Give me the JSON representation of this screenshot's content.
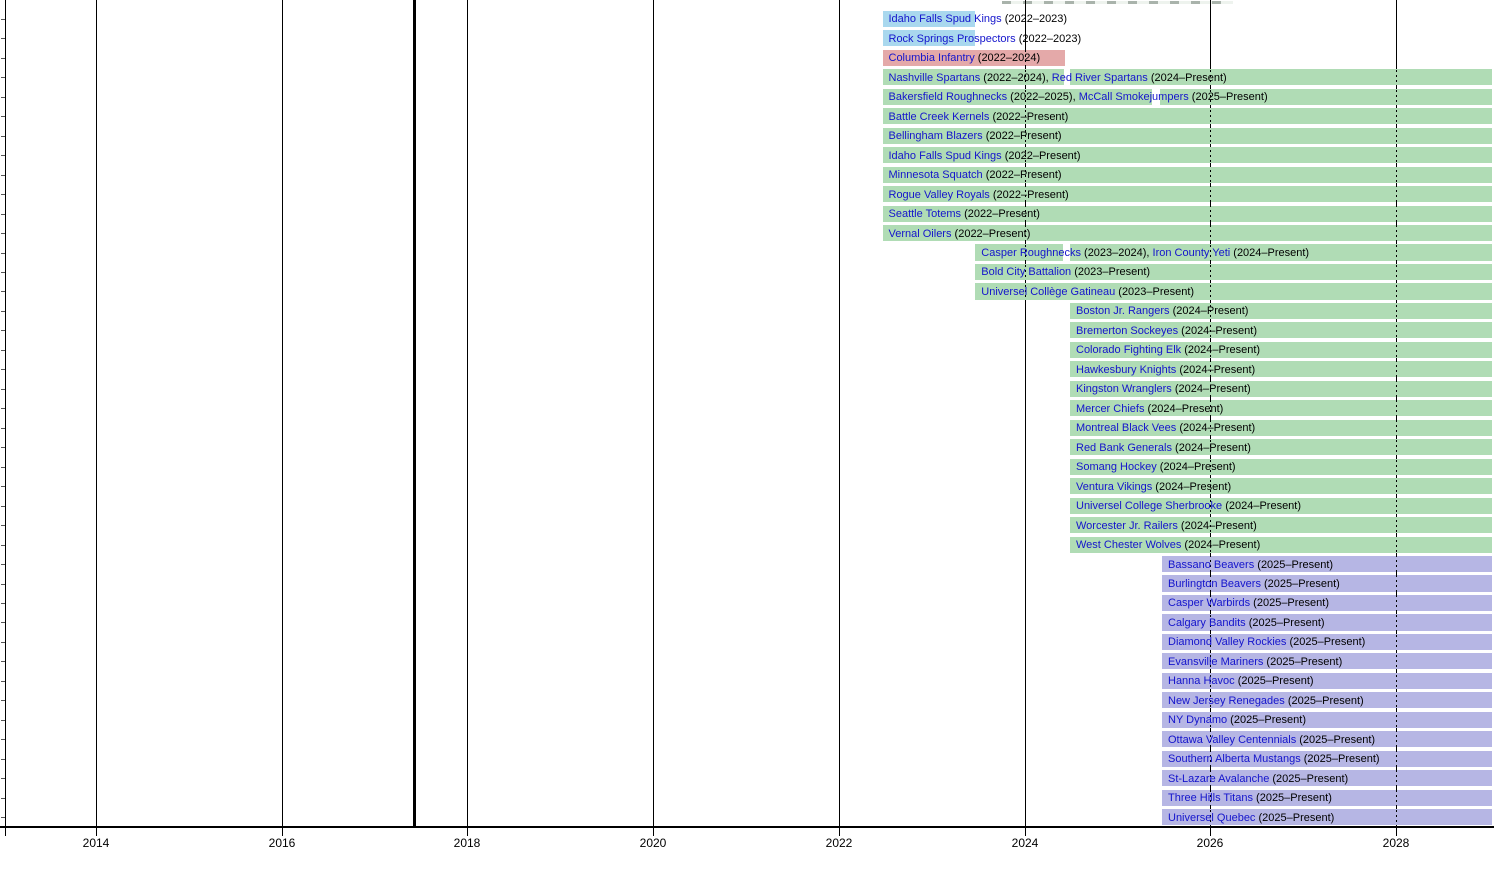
{
  "chart_data": {
    "type": "timeline",
    "title": "",
    "x_axis": {
      "tick_years": [
        2014,
        2016,
        2018,
        2020,
        2022,
        2024,
        2026,
        2028
      ],
      "range": [
        2013.0,
        2029.05
      ]
    },
    "era_marker_year": 2017.42,
    "present_end_year": 2029.03,
    "colors": {
      "blue": "#a9d8ee",
      "pink": "#e4a9a9",
      "green": "#b0dcb5",
      "purple": "#b6b6e4",
      "link_text": "#1414cc",
      "plain_text": "#000000"
    },
    "rows": [
      {
        "color": "blue",
        "segments": [
          {
            "name": "Idaho Falls Spud Kings",
            "years": "2022–2023",
            "start": 2022.47,
            "end": 2023.47
          }
        ]
      },
      {
        "color": "blue",
        "segments": [
          {
            "name": "Rock Springs Prospectors",
            "years": "2022–2023",
            "start": 2022.47,
            "end": 2023.47
          }
        ]
      },
      {
        "color": "pink",
        "segments": [
          {
            "name": "Columbia Infantry",
            "years": "2022–2024",
            "start": 2022.47,
            "end": 2024.44
          }
        ]
      },
      {
        "color": "green",
        "segments": [
          {
            "name": "Nashville Spartans",
            "years": "2022–2024",
            "start": 2022.47,
            "end": 2024.42
          },
          {
            "name": "Red River Spartans",
            "years": "2024–Present",
            "start": 2024.49,
            "end": 2029.03
          }
        ]
      },
      {
        "color": "green",
        "segments": [
          {
            "name": "Bakersfield Roughnecks",
            "years": "2022–2025",
            "start": 2022.47,
            "end": 2025.37
          },
          {
            "name": "McCall Smokejumpers",
            "years": "2025–Present",
            "start": 2025.46,
            "end": 2029.03
          }
        ]
      },
      {
        "color": "green",
        "segments": [
          {
            "name": "Battle Creek Kernels",
            "years": "2022–Present",
            "start": 2022.47,
            "end": 2029.03
          }
        ]
      },
      {
        "color": "green",
        "segments": [
          {
            "name": "Bellingham Blazers",
            "years": "2022–Present",
            "start": 2022.47,
            "end": 2029.03
          }
        ]
      },
      {
        "color": "green",
        "segments": [
          {
            "name": "Idaho Falls Spud Kings",
            "years": "2022–Present",
            "start": 2022.47,
            "end": 2029.03
          }
        ]
      },
      {
        "color": "green",
        "segments": [
          {
            "name": "Minnesota Squatch",
            "years": "2022–Present",
            "start": 2022.47,
            "end": 2029.03
          }
        ]
      },
      {
        "color": "green",
        "segments": [
          {
            "name": "Rogue Valley Royals",
            "years": "2022–Present",
            "start": 2022.47,
            "end": 2029.03
          }
        ]
      },
      {
        "color": "green",
        "segments": [
          {
            "name": "Seattle Totems",
            "years": "2022–Present",
            "start": 2022.47,
            "end": 2029.03
          }
        ]
      },
      {
        "color": "green",
        "segments": [
          {
            "name": "Vernal Oilers",
            "years": "2022–Present",
            "start": 2022.47,
            "end": 2029.03
          }
        ]
      },
      {
        "color": "green",
        "segments": [
          {
            "name": "Casper Roughnecks",
            "years": "2023–2024",
            "start": 2023.47,
            "end": 2024.42
          },
          {
            "name": "Iron County Yeti",
            "years": "2024–Present",
            "start": 2024.49,
            "end": 2029.03
          }
        ]
      },
      {
        "color": "green",
        "segments": [
          {
            "name": "Bold City Battalion",
            "years": "2023–Present",
            "start": 2023.47,
            "end": 2029.03
          }
        ]
      },
      {
        "color": "green",
        "segments": [
          {
            "name": "Universel Collège Gatineau",
            "years": "2023–Present",
            "start": 2023.47,
            "end": 2029.03
          }
        ]
      },
      {
        "color": "green",
        "segments": [
          {
            "name": "Boston Jr. Rangers",
            "years": "2024–Present",
            "start": 2024.49,
            "end": 2029.03
          }
        ]
      },
      {
        "color": "green",
        "segments": [
          {
            "name": "Bremerton Sockeyes",
            "years": "2024–Present",
            "start": 2024.49,
            "end": 2029.03
          }
        ]
      },
      {
        "color": "green",
        "segments": [
          {
            "name": "Colorado Fighting Elk",
            "years": "2024–Present",
            "start": 2024.49,
            "end": 2029.03
          }
        ]
      },
      {
        "color": "green",
        "segments": [
          {
            "name": "Hawkesbury Knights",
            "years": "2024–Present",
            "start": 2024.49,
            "end": 2029.03
          }
        ]
      },
      {
        "color": "green",
        "segments": [
          {
            "name": "Kingston Wranglers",
            "years": "2024–Present",
            "start": 2024.49,
            "end": 2029.03
          }
        ]
      },
      {
        "color": "green",
        "segments": [
          {
            "name": "Mercer Chiefs",
            "years": "2024–Present",
            "start": 2024.49,
            "end": 2029.03
          }
        ]
      },
      {
        "color": "green",
        "segments": [
          {
            "name": "Montreal Black Vees",
            "years": "2024–Present",
            "start": 2024.49,
            "end": 2029.03
          }
        ]
      },
      {
        "color": "green",
        "segments": [
          {
            "name": "Red Bank Generals",
            "years": "2024–Present",
            "start": 2024.49,
            "end": 2029.03
          }
        ]
      },
      {
        "color": "green",
        "segments": [
          {
            "name": "Somang Hockey",
            "years": "2024–Present",
            "start": 2024.49,
            "end": 2029.03
          }
        ]
      },
      {
        "color": "green",
        "segments": [
          {
            "name": "Ventura Vikings",
            "years": "2024–Present",
            "start": 2024.49,
            "end": 2029.03
          }
        ]
      },
      {
        "color": "green",
        "segments": [
          {
            "name": "Universel College Sherbrooke",
            "years": "2024–Present",
            "start": 2024.49,
            "end": 2029.03
          }
        ]
      },
      {
        "color": "green",
        "segments": [
          {
            "name": "Worcester Jr. Railers",
            "years": "2024–Present",
            "start": 2024.49,
            "end": 2029.03
          }
        ]
      },
      {
        "color": "green",
        "segments": [
          {
            "name": "West Chester Wolves",
            "years": "2024–Present",
            "start": 2024.49,
            "end": 2029.03
          }
        ]
      },
      {
        "color": "purple",
        "segments": [
          {
            "name": "Bassano Beavers",
            "years": "2025–Present",
            "start": 2025.48,
            "end": 2029.03
          }
        ]
      },
      {
        "color": "purple",
        "segments": [
          {
            "name": "Burlington Beavers",
            "years": "2025–Present",
            "start": 2025.48,
            "end": 2029.03
          }
        ]
      },
      {
        "color": "purple",
        "segments": [
          {
            "name": "Casper Warbirds",
            "years": "2025–Present",
            "start": 2025.48,
            "end": 2029.03
          }
        ]
      },
      {
        "color": "purple",
        "segments": [
          {
            "name": "Calgary Bandits",
            "years": "2025–Present",
            "start": 2025.48,
            "end": 2029.03
          }
        ]
      },
      {
        "color": "purple",
        "segments": [
          {
            "name": "Diamond Valley Rockies",
            "years": "2025–Present",
            "start": 2025.48,
            "end": 2029.03
          }
        ]
      },
      {
        "color": "purple",
        "segments": [
          {
            "name": "Evansville Mariners",
            "years": "2025–Present",
            "start": 2025.48,
            "end": 2029.03
          }
        ]
      },
      {
        "color": "purple",
        "segments": [
          {
            "name": "Hanna Havoc",
            "years": "2025–Present",
            "start": 2025.48,
            "end": 2029.03
          }
        ]
      },
      {
        "color": "purple",
        "segments": [
          {
            "name": "New Jersey Renegades",
            "years": "2025–Present",
            "start": 2025.48,
            "end": 2029.03
          }
        ]
      },
      {
        "color": "purple",
        "segments": [
          {
            "name": "NY Dynamo",
            "years": "2025–Present",
            "start": 2025.48,
            "end": 2029.03
          }
        ]
      },
      {
        "color": "purple",
        "segments": [
          {
            "name": "Ottawa Valley Centennials",
            "years": "2025–Present",
            "start": 2025.48,
            "end": 2029.03
          }
        ]
      },
      {
        "color": "purple",
        "segments": [
          {
            "name": "Southern Alberta Mustangs",
            "years": "2025–Present",
            "start": 2025.48,
            "end": 2029.03
          }
        ]
      },
      {
        "color": "purple",
        "segments": [
          {
            "name": "St-Lazare Avalanche",
            "years": "2025–Present",
            "start": 2025.48,
            "end": 2029.03
          }
        ]
      },
      {
        "color": "purple",
        "segments": [
          {
            "name": "Three Hills Titans",
            "years": "2025–Present",
            "start": 2025.48,
            "end": 2029.03
          }
        ]
      },
      {
        "color": "purple",
        "segments": [
          {
            "name": "Universel Quebec",
            "years": "2025–Present",
            "start": 2025.48,
            "end": 2029.03
          }
        ]
      }
    ]
  }
}
